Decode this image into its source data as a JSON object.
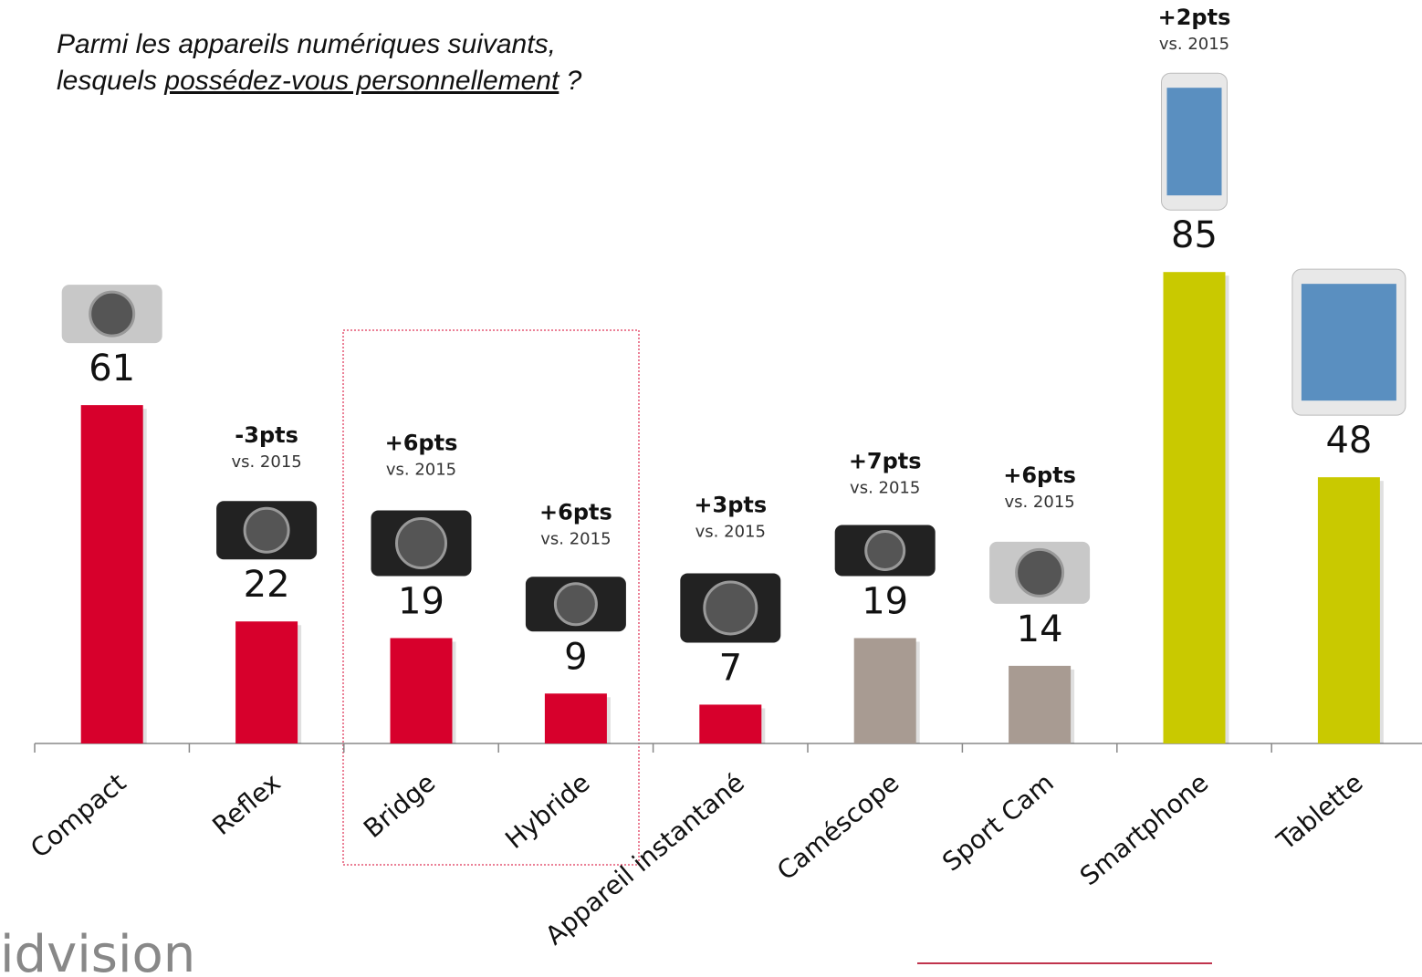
{
  "chart_data": {
    "type": "bar",
    "title_line1": "Parmi les appareils numériques suivants,",
    "title_line2": [
      "lesquels ",
      "possédez-vous personnellement",
      " ?"
    ],
    "categories": [
      "Compact",
      "Reflex",
      "Bridge",
      "Hybride",
      "Appareil instantané",
      "Caméscope",
      "Sport Cam",
      "Smartphone",
      "Tablette"
    ],
    "values": [
      61,
      22,
      19,
      9,
      7,
      19,
      14,
      85,
      48
    ],
    "colors": [
      "#d7002c",
      "#d7002c",
      "#d7002c",
      "#d7002c",
      "#d7002c",
      "#a89b92",
      "#a89b92",
      "#c9c900",
      "#c9c900"
    ],
    "changes": [
      null,
      "-3pts",
      "+6pts",
      "+6pts",
      "+3pts",
      "+7pts",
      "+6pts",
      "+2pts",
      null
    ],
    "change_note": "vs. 2015",
    "logo": "idvision"
  }
}
